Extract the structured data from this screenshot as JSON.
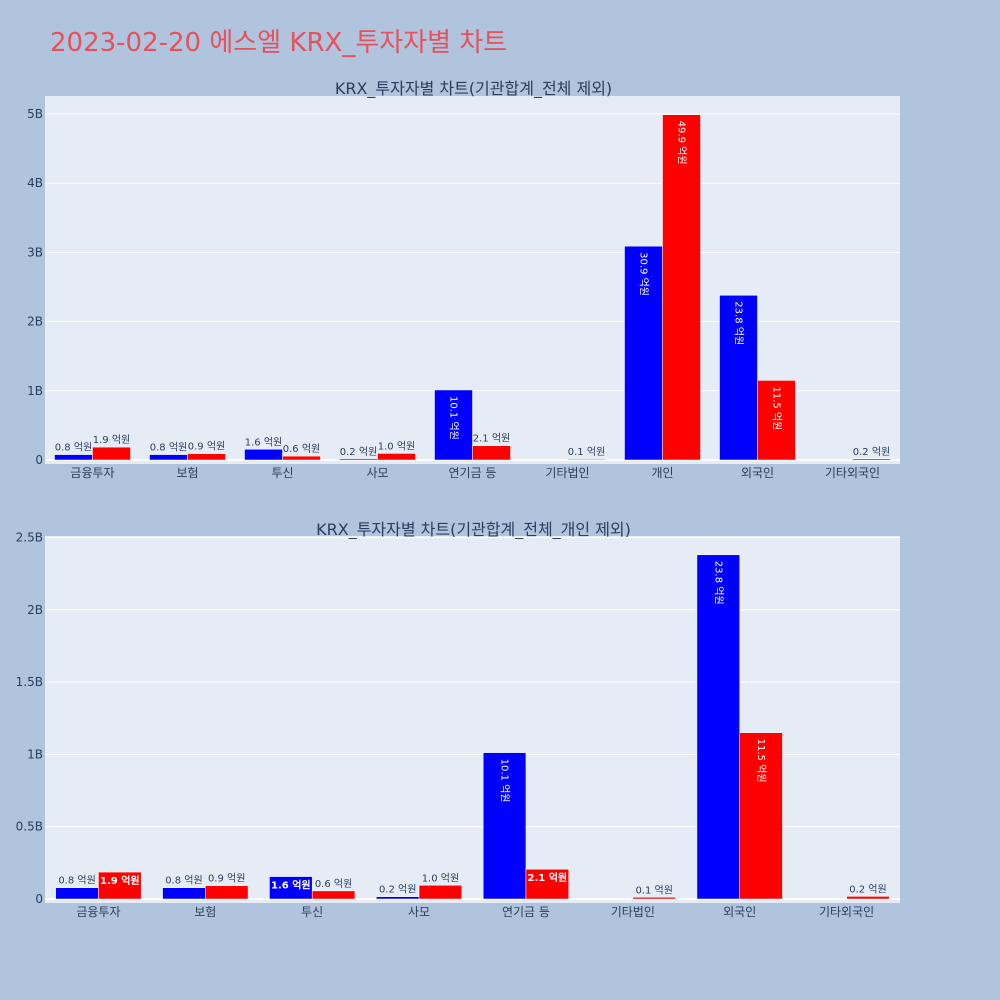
{
  "page_title": "2023-02-20 에스엘 KRX_투자자별 차트",
  "colors": {
    "title": "#e8505b",
    "background": "#b0c4de",
    "plot_background": "#e5ecf6",
    "series_a": "#0000ff",
    "series_b": "#ff0000"
  },
  "chart_data": [
    {
      "type": "bar",
      "title": "KRX_투자자별 차트(기관합계_전체 제외)",
      "categories": [
        "금융투자",
        "보험",
        "투신",
        "사모",
        "연기금 등",
        "기타법인",
        "개인",
        "외국인",
        "기타외국인"
      ],
      "series": [
        {
          "color": "#0000ff",
          "values": [
            78000000,
            78000000,
            155000000,
            16000000,
            1012000000,
            0,
            3090000000,
            2380000000,
            0
          ],
          "labels": [
            "0.8 억원",
            "0.8 억원",
            "1.6 억원",
            "0.2 억원",
            "10.1 억원",
            "",
            "30.9 억원",
            "23.8 억원",
            ""
          ]
        },
        {
          "color": "#ff0000",
          "values": [
            186000000,
            92000000,
            56000000,
            95000000,
            206000000,
            12000000,
            4990000000,
            1150000000,
            18000000
          ],
          "labels": [
            "1.9 억원",
            "0.9 억원",
            "0.6 억원",
            "1.0 억원",
            "2.1 억원",
            "0.1 억원",
            "49.9 억원",
            "11.5 억원",
            "0.2 억원"
          ]
        }
      ],
      "y_ticks": [
        0,
        1000000000,
        2000000000,
        3000000000,
        4000000000,
        5000000000
      ],
      "y_tick_labels": [
        "0",
        "1B",
        "2B",
        "3B",
        "4B",
        "5B"
      ],
      "ylim": [
        0,
        5260000000
      ],
      "grid": true
    },
    {
      "type": "bar",
      "title": "KRX_투자자별 차트(기관합계_전체_개인 제외)",
      "categories": [
        "금융투자",
        "보험",
        "투신",
        "사모",
        "연기금 등",
        "기타법인",
        "외국인",
        "기타외국인"
      ],
      "series": [
        {
          "color": "#0000ff",
          "values": [
            78000000,
            78000000,
            155000000,
            16000000,
            1012000000,
            0,
            2380000000,
            0
          ],
          "labels": [
            "0.8 억원",
            "0.8 억원",
            "1.6 억원",
            "0.2 억원",
            "10.1 억원",
            "",
            "23.8 억원",
            ""
          ]
        },
        {
          "color": "#ff0000",
          "values": [
            186000000,
            92000000,
            56000000,
            95000000,
            206000000,
            12000000,
            1150000000,
            18000000
          ],
          "labels": [
            "1.9 억원",
            "0.9 억원",
            "0.6 억원",
            "1.0 억원",
            "2.1 억원",
            "0.1 억원",
            "11.5 억원",
            "0.2 억원"
          ]
        }
      ],
      "y_ticks": [
        0,
        500000000,
        1000000000,
        1500000000,
        2000000000,
        2500000000
      ],
      "y_tick_labels": [
        "0",
        "0.5B",
        "1B",
        "1.5B",
        "2B",
        "2.5B"
      ],
      "ylim": [
        0,
        2510000000
      ],
      "grid": true
    }
  ]
}
